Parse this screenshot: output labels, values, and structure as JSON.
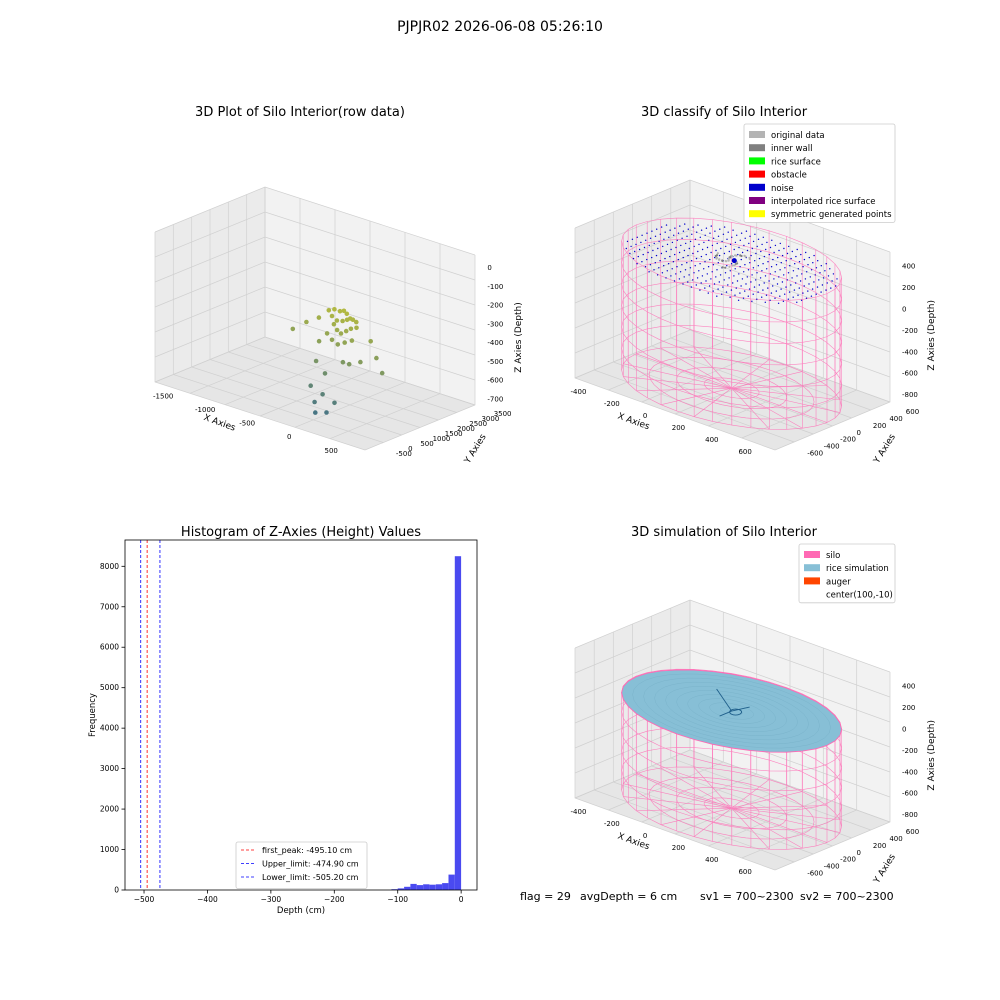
{
  "figure": {
    "suptitle": "PJPJR02 2026-06-08 05:26:10",
    "status": {
      "flag": "flag = 29",
      "avg_depth": "avgDepth = 6 cm",
      "sv1": "sv1 = 700~2300",
      "sv2": "sv2 = 700~2300"
    }
  },
  "colors": {
    "pane": "#f2f2f2",
    "pane_side": "#ebebeb",
    "pane_floor": "#e6e6e6",
    "grid": "#d0d0d0",
    "silo": "#ff69b4",
    "rice_sim": "#87bfd6",
    "auger": "#ff4500",
    "hist_bar": "#4a4af0",
    "first_peak": "#ff0000",
    "limit": "#0000ff",
    "noise": "#0000cc",
    "original": "#b4b4b4",
    "inner_wall": "#808080",
    "rice_surface": "#00ff00",
    "obstacle": "#ff0000",
    "interp": "#800080",
    "symmetric": "#ffff00"
  },
  "chart_data": [
    {
      "id": "raw",
      "type": "scatter",
      "title": "3D Plot of Silo Interior(row data)",
      "xlabel": "X Axies",
      "ylabel": "Y Axies",
      "zlabel": "Z Axies (Depth)",
      "x_ticks": [
        "-1500",
        "-1000",
        "-500",
        "0",
        "500"
      ],
      "y_ticks": [
        "-500",
        "0",
        "500",
        "1000",
        "1500",
        "2000",
        "2500",
        "3000",
        "3500"
      ],
      "z_ticks": [
        "0",
        "-100",
        "-200",
        "-300",
        "-400",
        "-500",
        "-600",
        "-700"
      ],
      "xlim": [
        -1700,
        700
      ],
      "ylim": [
        -700,
        3800
      ],
      "zlim": [
        -750,
        30
      ],
      "points": [
        {
          "x": -300,
          "y": 1400,
          "z": -280
        },
        {
          "x": -250,
          "y": 1450,
          "z": -270
        },
        {
          "x": -200,
          "y": 1500,
          "z": -275
        },
        {
          "x": -150,
          "y": 1480,
          "z": -265
        },
        {
          "x": -100,
          "y": 1420,
          "z": -270
        },
        {
          "x": -50,
          "y": 1380,
          "z": -285
        },
        {
          "x": -250,
          "y": 1350,
          "z": -300
        },
        {
          "x": -180,
          "y": 1300,
          "z": -310
        },
        {
          "x": -120,
          "y": 1320,
          "z": -305
        },
        {
          "x": -80,
          "y": 1360,
          "z": -295
        },
        {
          "x": -30,
          "y": 1420,
          "z": -290
        },
        {
          "x": 0,
          "y": 1450,
          "z": -300
        },
        {
          "x": -200,
          "y": 1250,
          "z": -330
        },
        {
          "x": -150,
          "y": 1200,
          "z": -350
        },
        {
          "x": -100,
          "y": 1180,
          "z": -360
        },
        {
          "x": -60,
          "y": 1250,
          "z": -345
        },
        {
          "x": -20,
          "y": 1300,
          "z": -330
        },
        {
          "x": 30,
          "y": 1350,
          "z": -320
        },
        {
          "x": -250,
          "y": 1150,
          "z": -380
        },
        {
          "x": -180,
          "y": 1100,
          "z": -400
        },
        {
          "x": -100,
          "y": 1050,
          "z": -410
        },
        {
          "x": -40,
          "y": 1120,
          "z": -395
        },
        {
          "x": 20,
          "y": 1200,
          "z": -380
        },
        {
          "x": -300,
          "y": 1000,
          "z": -420
        },
        {
          "x": -500,
          "y": 1200,
          "z": -360
        },
        {
          "x": -400,
          "y": 1350,
          "z": -330
        },
        {
          "x": -600,
          "y": 1000,
          "z": -400
        },
        {
          "x": 150,
          "y": 1500,
          "z": -380
        },
        {
          "x": 300,
          "y": 1200,
          "z": -430
        },
        {
          "x": 200,
          "y": 900,
          "z": -450
        },
        {
          "x": 100,
          "y": 800,
          "z": -470
        },
        {
          "x": -250,
          "y": 700,
          "z": -500
        },
        {
          "x": -120,
          "y": 600,
          "z": -540
        },
        {
          "x": 0,
          "y": 900,
          "z": -480
        },
        {
          "x": 450,
          "y": 900,
          "z": -470
        },
        {
          "x": -200,
          "y": 300,
          "z": -600
        },
        {
          "x": -50,
          "y": 250,
          "z": -620
        },
        {
          "x": -100,
          "y": 100,
          "z": -660
        },
        {
          "x": 100,
          "y": 200,
          "z": -640
        },
        {
          "x": -50,
          "y": -50,
          "z": -700
        },
        {
          "x": 50,
          "y": 50,
          "z": -690
        }
      ]
    },
    {
      "id": "classify",
      "type": "scatter",
      "title": "3D classify of Silo Interior",
      "xlabel": "X Axies",
      "ylabel": "Y Axies",
      "zlabel": "Z Axies (Depth)",
      "x_ticks": [
        "-400",
        "-200",
        "0",
        "200",
        "400",
        "600"
      ],
      "y_ticks": [
        "-600",
        "-400",
        "-200",
        "0",
        "200",
        "400",
        "600"
      ],
      "z_ticks": [
        "400",
        "200",
        "0",
        "-200",
        "-400",
        "-600",
        "-800"
      ],
      "xlim": [
        -550,
        750
      ],
      "ylim": [
        -650,
        650
      ],
      "zlim": [
        -900,
        450
      ],
      "silo": {
        "cx": 100,
        "cy": -10,
        "r": 620,
        "top": 280,
        "bottom": -880
      },
      "legend": [
        {
          "label": "original data",
          "color": "#b4b4b4"
        },
        {
          "label": "inner wall",
          "color": "#808080"
        },
        {
          "label": "rice surface",
          "color": "#00ff00"
        },
        {
          "label": "obstacle",
          "color": "#ff0000"
        },
        {
          "label": "noise",
          "color": "#0000cc"
        },
        {
          "label": "interpolated rice surface",
          "color": "#800080"
        },
        {
          "label": "symmetric generated points",
          "color": "#ffff00"
        }
      ]
    },
    {
      "id": "hist",
      "type": "bar",
      "title": "Histogram of Z-Axies (Height) Values",
      "xlabel": "Depth (cm)",
      "ylabel": "Frequency",
      "x_ticks": [
        -500,
        -400,
        -300,
        -200,
        -100,
        0
      ],
      "y_ticks": [
        0,
        1000,
        2000,
        3000,
        4000,
        5000,
        6000,
        7000,
        8000
      ],
      "xlim": [
        -530,
        25
      ],
      "ylim": [
        0,
        8650
      ],
      "bin_width": 10,
      "bins": [
        {
          "x0": -110,
          "count": 20
        },
        {
          "x0": -100,
          "count": 40
        },
        {
          "x0": -90,
          "count": 80
        },
        {
          "x0": -80,
          "count": 150
        },
        {
          "x0": -70,
          "count": 120
        },
        {
          "x0": -60,
          "count": 140
        },
        {
          "x0": -50,
          "count": 130
        },
        {
          "x0": -40,
          "count": 140
        },
        {
          "x0": -30,
          "count": 170
        },
        {
          "x0": -20,
          "count": 380
        },
        {
          "x0": -10,
          "count": 8250
        }
      ],
      "vlines": [
        {
          "label": "first_peak: -495.10 cm",
          "x": -495.1,
          "color": "#ff0000"
        },
        {
          "label": "Upper_limit: -474.90 cm",
          "x": -474.9,
          "color": "#0000ff"
        },
        {
          "label": "Lower_limit: -505.20 cm",
          "x": -505.2,
          "color": "#0000ff"
        }
      ]
    },
    {
      "id": "sim",
      "type": "surface",
      "title": "3D simulation of Silo Interior",
      "xlabel": "X Axies",
      "ylabel": "Y Axies",
      "zlabel": "Z Axies (Depth)",
      "x_ticks": [
        "-400",
        "-200",
        "0",
        "200",
        "400",
        "600"
      ],
      "y_ticks": [
        "-600",
        "-400",
        "-200",
        "0",
        "200",
        "400",
        "600"
      ],
      "z_ticks": [
        "400",
        "200",
        "0",
        "-200",
        "-400",
        "-600",
        "-800"
      ],
      "xlim": [
        -550,
        750
      ],
      "ylim": [
        -650,
        650
      ],
      "zlim": [
        -900,
        450
      ],
      "silo": {
        "cx": 100,
        "cy": -10,
        "r": 620,
        "top": 0,
        "bottom": -880
      },
      "rice_level": -6,
      "legend": [
        {
          "label": "silo",
          "color": "#ff69b4"
        },
        {
          "label": "rice simulation",
          "color": "#87bfd6"
        },
        {
          "label": "auger",
          "color": "#ff4500"
        },
        {
          "label": "center(100,-10)",
          "color": ""
        }
      ]
    }
  ]
}
